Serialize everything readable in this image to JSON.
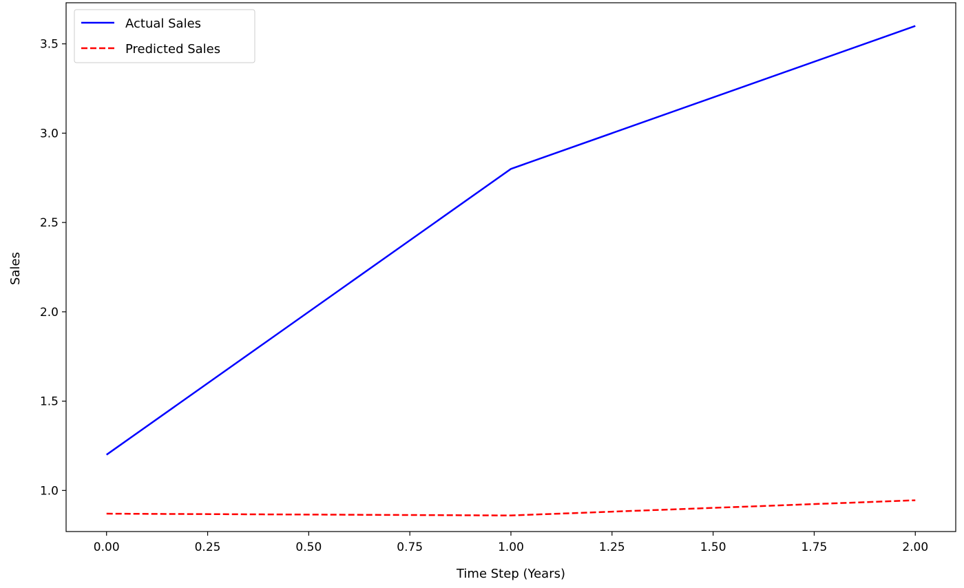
{
  "chart_data": {
    "type": "line",
    "title": "",
    "xlabel": "Time Step (Years)",
    "ylabel": "Sales",
    "xlim": [
      -0.1,
      2.1
    ],
    "ylim": [
      0.77,
      3.73
    ],
    "xticks": [
      "0.00",
      "0.25",
      "0.50",
      "0.75",
      "1.00",
      "1.25",
      "1.50",
      "1.75",
      "2.00"
    ],
    "yticks": [
      "1.0",
      "1.5",
      "2.0",
      "2.5",
      "3.0",
      "3.5"
    ],
    "grid": false,
    "legend_position": "top-left",
    "series": [
      {
        "name": "Actual Sales",
        "color": "#0000ff",
        "style": "solid",
        "x": [
          0,
          1,
          2
        ],
        "y": [
          1.2,
          2.8,
          3.6
        ]
      },
      {
        "name": "Predicted Sales",
        "color": "#ff0000",
        "style": "dashed",
        "x": [
          0,
          1,
          2
        ],
        "y": [
          0.87,
          0.86,
          0.945
        ]
      }
    ]
  }
}
